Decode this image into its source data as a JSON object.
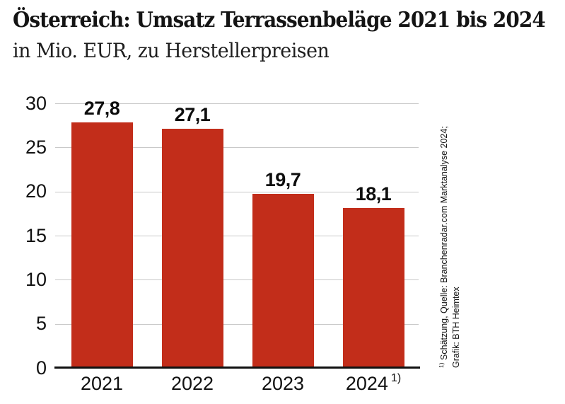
{
  "header": {
    "title": "Österreich: Umsatz Terrassenbeläge 2021 bis 2024",
    "subtitle": "in Mio. EUR, zu Herstellerpreisen"
  },
  "footnote": {
    "marker": "1)",
    "line1": "Schätzung, Quelle: Branchenradar.com Marktanalyse 2024;",
    "line2": "Grafik: BTH Heimtex"
  },
  "chart_data": {
    "type": "bar",
    "title": "Österreich: Umsatz Terrassenbeläge 2021 bis 2024",
    "subtitle": "in Mio. EUR, zu Herstellerpreisen",
    "categories": [
      "2021",
      "2022",
      "2023",
      "2024"
    ],
    "category_superscripts": [
      "",
      "",
      "",
      "1)"
    ],
    "values": [
      27.8,
      27.1,
      19.7,
      18.1
    ],
    "value_labels": [
      "27,8",
      "27,1",
      "19,7",
      "18,1"
    ],
    "xlabel": "",
    "ylabel": "",
    "ylim": [
      0,
      30
    ],
    "yticks": [
      0,
      5,
      10,
      15,
      20,
      25,
      30
    ],
    "grid": true,
    "legend": false,
    "bar_color": "#c22d1a",
    "gridline_color": "#c9c9c9",
    "axis_color": "#111111",
    "footnote": "1) Schätzung, Quelle: Branchenradar.com Marktanalyse 2024; Grafik: BTH Heimtex"
  }
}
